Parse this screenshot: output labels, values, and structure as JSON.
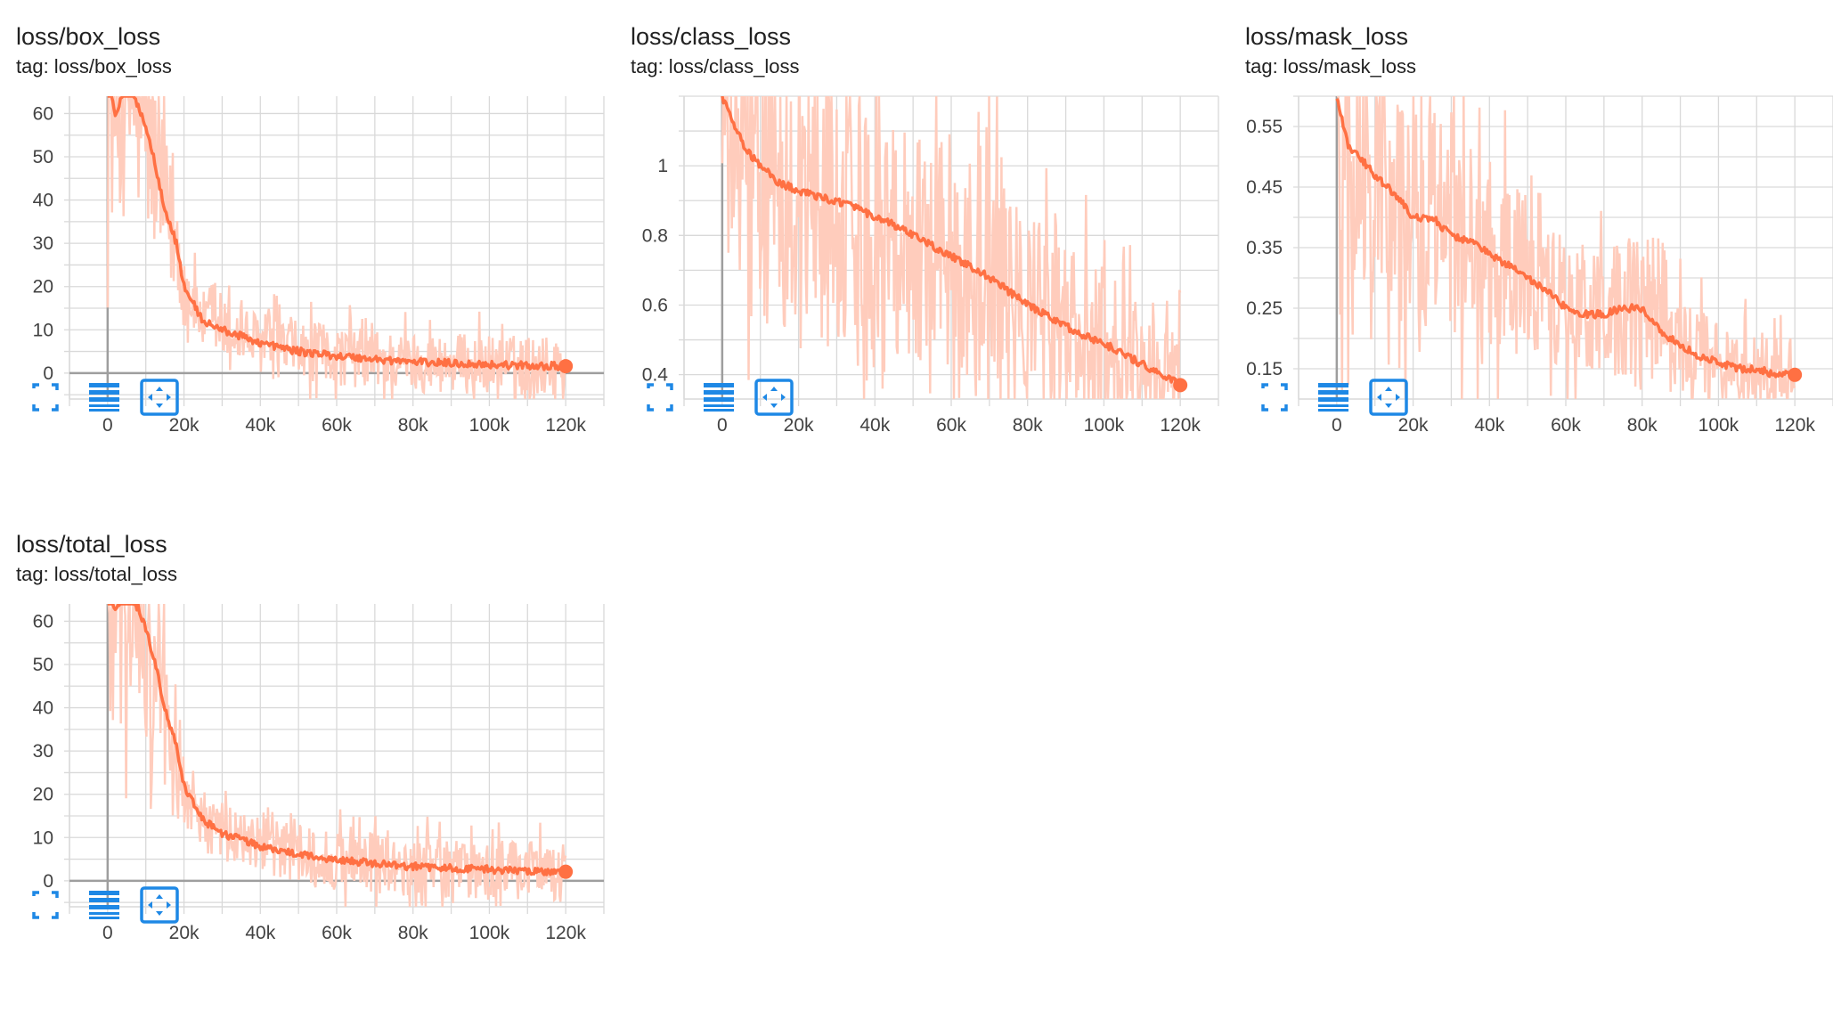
{
  "colors": {
    "smoothed_line": "#ff7043",
    "raw_line": "#ffccbc",
    "grid": "#d9d9d9",
    "axis": "#9e9e9e",
    "toolbar_icon": "#1e88e5"
  },
  "toolbar_icons": [
    "fullscreen-icon",
    "toggle-log-scale-icon",
    "fit-domain-icon"
  ],
  "chart_data": [
    {
      "type": "line",
      "title": "loss/box_loss",
      "tag": "tag: loss/box_loss",
      "xlim": [
        -10000,
        130000
      ],
      "ylim": [
        -6,
        64
      ],
      "xticks": [
        0,
        20000,
        40000,
        60000,
        80000,
        100000,
        120000
      ],
      "xtick_labels": [
        "0",
        "20k",
        "40k",
        "60k",
        "80k",
        "100k",
        "120k"
      ],
      "yticks": [
        0,
        10,
        20,
        30,
        40,
        50,
        60
      ],
      "ytick_labels": [
        "0",
        "10",
        "20",
        "30",
        "40",
        "50",
        "60"
      ],
      "series": [
        {
          "x": [
            0,
            2000,
            5000,
            8000,
            10000,
            12000,
            15000,
            18000,
            20000,
            25000,
            30000,
            40000,
            50000,
            60000,
            70000,
            80000,
            90000,
            100000,
            110000,
            120000
          ],
          "y": [
            68,
            60,
            66,
            62,
            57,
            50,
            38,
            30,
            20,
            12,
            10,
            7,
            5,
            4,
            3.2,
            2.6,
            2.3,
            2,
            1.7,
            1.6
          ]
        }
      ]
    },
    {
      "type": "line",
      "title": "loss/class_loss",
      "tag": "tag: loss/class_loss",
      "xlim": [
        -10000,
        130000
      ],
      "ylim": [
        0.33,
        1.2
      ],
      "xticks": [
        0,
        20000,
        40000,
        60000,
        80000,
        100000,
        120000
      ],
      "xtick_labels": [
        "0",
        "20k",
        "40k",
        "60k",
        "80k",
        "100k",
        "120k"
      ],
      "yticks": [
        0.4,
        0.6,
        0.8,
        1
      ],
      "ytick_labels": [
        "0.4",
        "0.6",
        "0.8",
        "1"
      ],
      "series": [
        {
          "x": [
            0,
            3000,
            6000,
            10000,
            15000,
            20000,
            25000,
            30000,
            35000,
            40000,
            45000,
            50000,
            55000,
            60000,
            65000,
            70000,
            75000,
            80000,
            85000,
            90000,
            95000,
            100000,
            105000,
            110000,
            115000,
            120000
          ],
          "y": [
            1.2,
            1.12,
            1.05,
            1.0,
            0.95,
            0.93,
            0.91,
            0.9,
            0.88,
            0.85,
            0.83,
            0.8,
            0.77,
            0.74,
            0.71,
            0.68,
            0.64,
            0.6,
            0.57,
            0.54,
            0.51,
            0.49,
            0.46,
            0.43,
            0.4,
            0.37
          ]
        }
      ]
    },
    {
      "type": "line",
      "title": "loss/mask_loss",
      "tag": "tag: loss/mask_loss",
      "xlim": [
        -10000,
        130000
      ],
      "ylim": [
        0.1,
        0.6
      ],
      "xticks": [
        0,
        20000,
        40000,
        60000,
        80000,
        100000,
        120000
      ],
      "xtick_labels": [
        "0",
        "20k",
        "40k",
        "60k",
        "80k",
        "100k",
        "120k"
      ],
      "yticks": [
        0.15,
        0.25,
        0.35,
        0.45,
        0.55
      ],
      "ytick_labels": [
        "0.15",
        "0.25",
        "0.35",
        "0.45",
        "0.55"
      ],
      "series": [
        {
          "x": [
            0,
            3000,
            6000,
            10000,
            15000,
            20000,
            25000,
            30000,
            35000,
            40000,
            45000,
            50000,
            55000,
            60000,
            65000,
            70000,
            75000,
            80000,
            85000,
            90000,
            95000,
            100000,
            105000,
            110000,
            115000,
            120000
          ],
          "y": [
            0.6,
            0.52,
            0.5,
            0.47,
            0.44,
            0.4,
            0.4,
            0.37,
            0.36,
            0.34,
            0.32,
            0.3,
            0.28,
            0.25,
            0.24,
            0.24,
            0.25,
            0.25,
            0.21,
            0.19,
            0.17,
            0.16,
            0.15,
            0.15,
            0.14,
            0.14
          ]
        }
      ]
    },
    {
      "type": "line",
      "title": "loss/total_loss",
      "tag": "tag: loss/total_loss",
      "xlim": [
        -10000,
        130000
      ],
      "ylim": [
        -6,
        64
      ],
      "xticks": [
        0,
        20000,
        40000,
        60000,
        80000,
        100000,
        120000
      ],
      "xtick_labels": [
        "0",
        "20k",
        "40k",
        "60k",
        "80k",
        "100k",
        "120k"
      ],
      "yticks": [
        0,
        10,
        20,
        30,
        40,
        50,
        60
      ],
      "ytick_labels": [
        "0",
        "10",
        "20",
        "30",
        "40",
        "50",
        "60"
      ],
      "series": [
        {
          "x": [
            0,
            2000,
            5000,
            8000,
            10000,
            12000,
            15000,
            18000,
            20000,
            25000,
            30000,
            40000,
            50000,
            60000,
            70000,
            80000,
            90000,
            100000,
            110000,
            120000
          ],
          "y": [
            70,
            62,
            67,
            63,
            58,
            52,
            40,
            31,
            22,
            14,
            11,
            8,
            6,
            4.8,
            4,
            3.3,
            2.9,
            2.6,
            2.3,
            2.1
          ]
        }
      ]
    }
  ]
}
